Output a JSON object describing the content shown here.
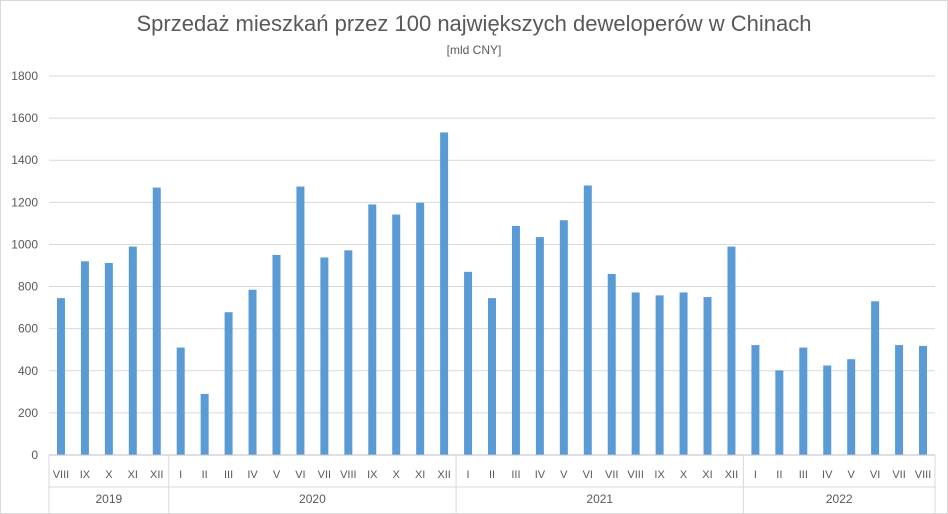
{
  "chart_data": {
    "type": "bar",
    "title": "Sprzedaż mieszkań przez 100 największych deweloperów w Chinach",
    "subtitle": "[mld CNY]",
    "ylim": [
      0,
      1800
    ],
    "yticks": [
      0,
      200,
      400,
      600,
      800,
      1000,
      1200,
      1400,
      1600,
      1800
    ],
    "grid": true,
    "bar_color": "#5b9bd5",
    "categories": [
      "VIII",
      "IX",
      "X",
      "XI",
      "XII",
      "I",
      "II",
      "III",
      "IV",
      "V",
      "VI",
      "VII",
      "VIII",
      "IX",
      "X",
      "XI",
      "XII",
      "I",
      "II",
      "III",
      "IV",
      "V",
      "VI",
      "VII",
      "VIII",
      "IX",
      "X",
      "XI",
      "XII",
      "I",
      "II",
      "III",
      "IV",
      "V",
      "VI",
      "VII",
      "VIII"
    ],
    "values": [
      745,
      920,
      912,
      990,
      1270,
      510,
      290,
      678,
      785,
      950,
      1275,
      938,
      972,
      1190,
      1142,
      1198,
      1532,
      870,
      745,
      1088,
      1035,
      1115,
      1280,
      860,
      772,
      758,
      772,
      750,
      990,
      522,
      402,
      510,
      425,
      455,
      730,
      522,
      518
    ],
    "groups": [
      {
        "label": "2019",
        "start": 0,
        "end": 4
      },
      {
        "label": "2020",
        "start": 5,
        "end": 16
      },
      {
        "label": "2021",
        "start": 17,
        "end": 28
      },
      {
        "label": "2022",
        "start": 29,
        "end": 36
      }
    ]
  }
}
